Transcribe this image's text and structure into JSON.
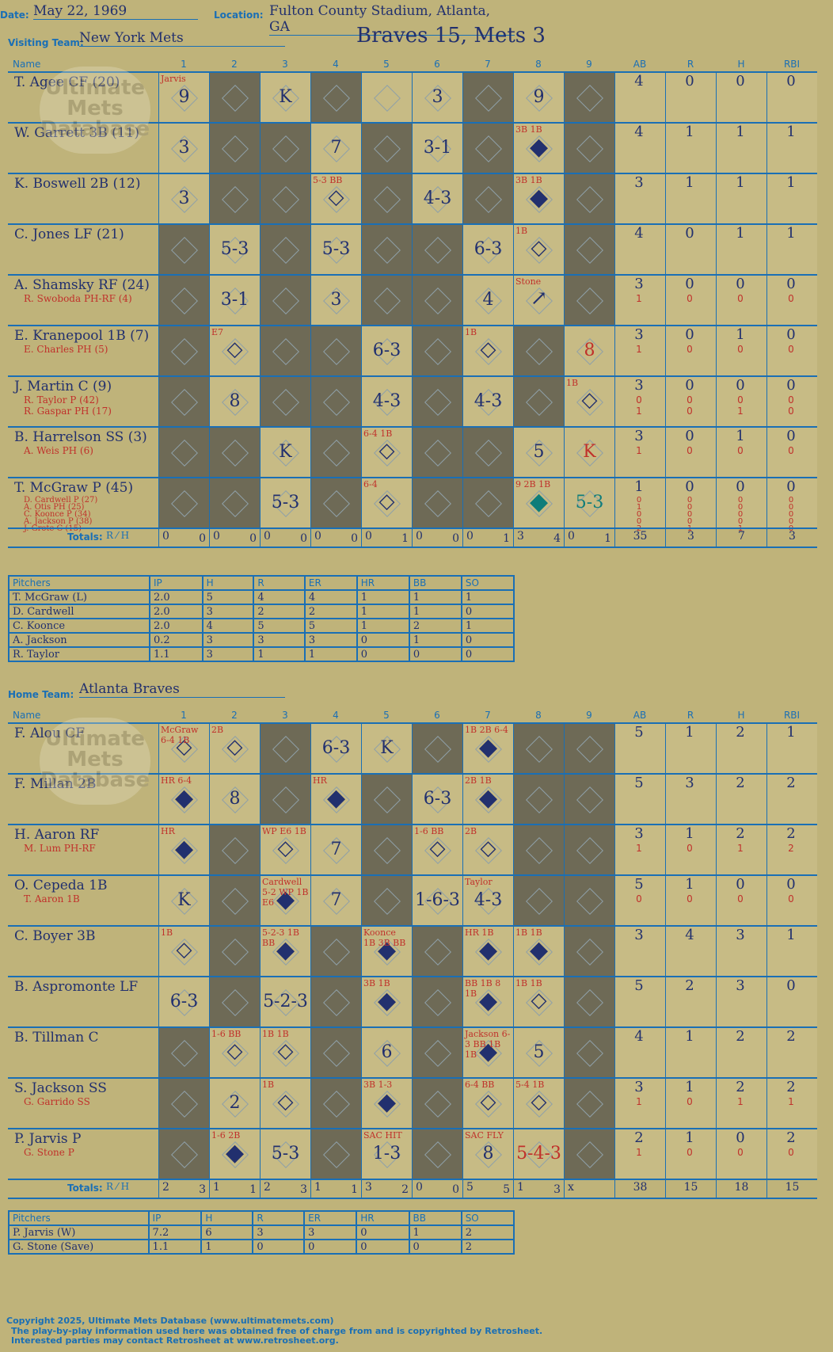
{
  "header": {
    "date_label": "Date:",
    "date": "May 22, 1969",
    "location_label": "Location:",
    "location": "Fulton County Stadium, Atlanta, GA",
    "score": "Braves 15, Mets 3"
  },
  "watermark": {
    "line1": "Ultimate",
    "line2": "Mets",
    "line3": "Database",
    "url": "ultimatemets.com"
  },
  "visitors": {
    "team_label": "Visiting Team:",
    "team": "New York Mets",
    "columns": [
      "Name",
      "1",
      "2",
      "3",
      "4",
      "5",
      "6",
      "7",
      "8",
      "9",
      "AB",
      "R",
      "H",
      "RBI"
    ],
    "players": [
      {
        "name": "T. Agee CF (20)",
        "subs": [],
        "ab": "4",
        "r": "0",
        "h": "0",
        "rbi": "0",
        "sub_stats": []
      },
      {
        "name": "W. Garrett 3B (11)",
        "subs": [],
        "ab": "4",
        "r": "1",
        "h": "1",
        "rbi": "1",
        "sub_stats": []
      },
      {
        "name": "K. Boswell 2B (12)",
        "subs": [],
        "ab": "3",
        "r": "1",
        "h": "1",
        "rbi": "1",
        "sub_stats": []
      },
      {
        "name": "C. Jones LF (21)",
        "subs": [],
        "ab": "4",
        "r": "0",
        "h": "1",
        "rbi": "1",
        "sub_stats": []
      },
      {
        "name": "A. Shamsky RF (24)",
        "subs": [
          "R. Swoboda PH-RF (4)"
        ],
        "ab": "3",
        "r": "0",
        "h": "0",
        "rbi": "0",
        "sub_stats": [
          [
            "1",
            "0",
            "0",
            "0"
          ]
        ]
      },
      {
        "name": "E. Kranepool 1B (7)",
        "subs": [
          "E. Charles PH (5)"
        ],
        "ab": "3",
        "r": "0",
        "h": "1",
        "rbi": "0",
        "sub_stats": [
          [
            "1",
            "0",
            "0",
            "0"
          ]
        ]
      },
      {
        "name": "J. Martin C (9)",
        "subs": [
          "R. Taylor P (42)",
          "R. Gaspar PH (17)"
        ],
        "ab": "3",
        "r": "0",
        "h": "0",
        "rbi": "0",
        "sub_stats": [
          [
            "0",
            "0",
            "0",
            "0"
          ],
          [
            "1",
            "0",
            "1",
            "0"
          ]
        ]
      },
      {
        "name": "B. Harrelson SS (3)",
        "subs": [
          "A. Weis PH (6)"
        ],
        "ab": "3",
        "r": "0",
        "h": "1",
        "rbi": "0",
        "sub_stats": [
          [
            "1",
            "0",
            "0",
            "0"
          ]
        ]
      },
      {
        "name": "T. McGraw P (45)",
        "subs": [
          "D. Cardwell P (27)",
          "A. Otis PH (25)",
          "C. Koonce P (34)",
          "A. Jackson P (38)",
          "J. Grote C (15)"
        ],
        "ab": "1",
        "r": "0",
        "h": "0",
        "rbi": "0",
        "sub_stats": [
          [
            "0",
            "0",
            "0",
            "0"
          ],
          [
            "1",
            "0",
            "0",
            "0"
          ],
          [
            "0",
            "0",
            "0",
            "0"
          ],
          [
            "0",
            "0",
            "0",
            "0"
          ],
          [
            "2",
            "1",
            "1",
            "0"
          ]
        ]
      }
    ],
    "cells": [
      [
        "9",
        "",
        "K",
        "",
        "",
        "3",
        "",
        "9",
        ""
      ],
      [
        "3",
        "",
        "",
        "7",
        "",
        "3-1",
        "",
        "◆",
        ""
      ],
      [
        "3",
        "",
        "",
        "◇",
        "",
        "4-3",
        "",
        "◆",
        ""
      ],
      [
        "",
        "5-3",
        "",
        "5-3",
        "",
        "",
        "6-3",
        "◇",
        ""
      ],
      [
        "",
        "3-1",
        "",
        "3",
        "",
        "",
        "4",
        "↗",
        ""
      ],
      [
        "",
        "◇",
        "",
        "",
        "6-3",
        "",
        "◇",
        "",
        "8"
      ],
      [
        "",
        "8",
        "",
        "",
        "4-3",
        "",
        "4-3",
        "",
        "◇"
      ],
      [
        "",
        "",
        "K",
        "",
        "◇",
        "",
        "",
        "5",
        "K"
      ],
      [
        "",
        "",
        "5-3",
        "",
        "◇",
        "",
        "",
        "◆",
        "5-3"
      ]
    ],
    "cell_notes": [
      [
        "Jarvis",
        "",
        "",
        "",
        "",
        "",
        "",
        "",
        ""
      ],
      [
        "",
        "",
        "",
        "",
        "",
        "",
        "",
        "3B 1B",
        ""
      ],
      [
        "",
        "",
        "",
        "5-3 BB",
        "",
        "",
        "",
        "3B 1B",
        ""
      ],
      [
        "",
        "",
        "",
        "",
        "",
        "",
        "",
        "1B",
        ""
      ],
      [
        "",
        "",
        "",
        "",
        "",
        "",
        "",
        "Stone",
        ""
      ],
      [
        "",
        "E7",
        "",
        "",
        "",
        "",
        "1B",
        "",
        ""
      ],
      [
        "",
        "",
        "",
        "",
        "",
        "",
        "",
        "",
        "1B"
      ],
      [
        "",
        "",
        "",
        "",
        "6-4 1B",
        "",
        "",
        "",
        ""
      ],
      [
        "",
        "",
        "",
        "",
        "6-4",
        "",
        "",
        "9 2B 1B",
        ""
      ]
    ],
    "totals_label": "Totals:",
    "rh_label_r": "R",
    "rh_label_h": "H",
    "inning_totals": [
      [
        "0",
        "0"
      ],
      [
        "0",
        "0"
      ],
      [
        "0",
        "0"
      ],
      [
        "0",
        "0"
      ],
      [
        "0",
        "1"
      ],
      [
        "0",
        "0"
      ],
      [
        "0",
        "1"
      ],
      [
        "3",
        "4"
      ],
      [
        "0",
        "1"
      ]
    ],
    "totals": {
      "ab": "35",
      "r": "3",
      "h": "7",
      "rbi": "3"
    }
  },
  "visitor_pitchers": {
    "columns": [
      "Pitchers",
      "IP",
      "H",
      "R",
      "ER",
      "HR",
      "BB",
      "SO"
    ],
    "rows": [
      [
        "T. McGraw (L)",
        "2.0",
        "5",
        "4",
        "4",
        "1",
        "1",
        "1"
      ],
      [
        "D. Cardwell",
        "2.0",
        "3",
        "2",
        "2",
        "1",
        "1",
        "0"
      ],
      [
        "C. Koonce",
        "2.0",
        "4",
        "5",
        "5",
        "1",
        "2",
        "1"
      ],
      [
        "A. Jackson",
        "0.2",
        "3",
        "3",
        "3",
        "0",
        "1",
        "0"
      ],
      [
        "R. Taylor",
        "1.1",
        "3",
        "1",
        "1",
        "0",
        "0",
        "0"
      ]
    ]
  },
  "home": {
    "team_label": "Home Team:",
    "team": "Atlanta Braves",
    "players": [
      {
        "name": "F. Alou CF",
        "subs": [],
        "ab": "5",
        "r": "1",
        "h": "2",
        "rbi": "1",
        "sub_stats": []
      },
      {
        "name": "F. Millan 2B",
        "subs": [],
        "ab": "5",
        "r": "3",
        "h": "2",
        "rbi": "2",
        "sub_stats": []
      },
      {
        "name": "H. Aaron RF",
        "subs": [
          "M. Lum PH-RF"
        ],
        "ab": "3",
        "r": "1",
        "h": "2",
        "rbi": "2",
        "sub_stats": [
          [
            "1",
            "0",
            "1",
            "2"
          ]
        ]
      },
      {
        "name": "O. Cepeda 1B",
        "subs": [
          "T. Aaron 1B"
        ],
        "ab": "5",
        "r": "1",
        "h": "0",
        "rbi": "0",
        "sub_stats": [
          [
            "0",
            "0",
            "0",
            "0"
          ]
        ]
      },
      {
        "name": "C. Boyer 3B",
        "subs": [],
        "ab": "3",
        "r": "4",
        "h": "3",
        "rbi": "1",
        "sub_stats": []
      },
      {
        "name": "B. Aspromonte LF",
        "subs": [],
        "ab": "5",
        "r": "2",
        "h": "3",
        "rbi": "0",
        "sub_stats": []
      },
      {
        "name": "B. Tillman C",
        "subs": [],
        "ab": "4",
        "r": "1",
        "h": "2",
        "rbi": "2",
        "sub_stats": []
      },
      {
        "name": "S. Jackson SS",
        "subs": [
          "G. Garrido SS"
        ],
        "ab": "3",
        "r": "1",
        "h": "2",
        "rbi": "2",
        "sub_stats": [
          [
            "1",
            "0",
            "1",
            "1"
          ]
        ]
      },
      {
        "name": "P. Jarvis P",
        "subs": [
          "G. Stone P"
        ],
        "ab": "2",
        "r": "1",
        "h": "0",
        "rbi": "2",
        "sub_stats": [
          [
            "1",
            "0",
            "0",
            "0"
          ]
        ]
      }
    ],
    "cells": [
      [
        "◇",
        "◇",
        "",
        "6-3",
        "K",
        "",
        "◆",
        "",
        ""
      ],
      [
        "◆",
        "8",
        "",
        "◆",
        "",
        "6-3",
        "◆",
        "",
        ""
      ],
      [
        "◆",
        "",
        "◇",
        "7",
        "",
        "◇",
        "◇",
        "",
        ""
      ],
      [
        "K",
        "",
        "◆",
        "7",
        "",
        "1-6-3",
        "4-3",
        "",
        ""
      ],
      [
        "◇",
        "",
        "◆",
        "",
        "◆",
        "",
        "◆",
        "◆",
        ""
      ],
      [
        "6-3",
        "",
        "5-2-3",
        "",
        "◆",
        "",
        "◆",
        "◇",
        ""
      ],
      [
        "",
        "◇",
        "◇",
        "",
        "6",
        "",
        "◆",
        "5",
        ""
      ],
      [
        "",
        "2",
        "◇",
        "",
        "◆",
        "",
        "◇",
        "◇",
        ""
      ],
      [
        "",
        "◆",
        "5-3",
        "",
        "1-3",
        "",
        "8",
        "5-4-3",
        ""
      ]
    ],
    "cell_notes": [
      [
        "McGraw 6-4 1B",
        "2B",
        "",
        "",
        "",
        "",
        "1B 2B 6-4",
        "",
        ""
      ],
      [
        "HR 6-4",
        "",
        "",
        "HR",
        "",
        "",
        "2B 1B",
        "",
        ""
      ],
      [
        "HR",
        "",
        "WP E6 1B",
        "",
        "",
        "1-6 BB",
        "2B",
        "",
        ""
      ],
      [
        "",
        "",
        "Cardwell 5-2 WP 1B E6",
        "",
        "",
        "",
        "Taylor",
        "",
        ""
      ],
      [
        "1B",
        "",
        "5-2-3 1B BB",
        "",
        "Koonce 1B 3B BB",
        "",
        "HR 1B",
        "1B 1B",
        ""
      ],
      [
        "",
        "",
        "",
        "",
        "3B 1B",
        "",
        "BB 1B 8 1B",
        "1B 1B",
        ""
      ],
      [
        "",
        "1-6 BB",
        "1B 1B",
        "",
        "",
        "",
        "Jackson 6-3 BB 1B 1B",
        "",
        ""
      ],
      [
        "",
        "",
        "1B",
        "",
        "3B 1-3",
        "",
        "6-4 BB",
        "5-4 1B",
        ""
      ],
      [
        "",
        "1-6 2B",
        "",
        "",
        "SAC HIT",
        "",
        "SAC FLY",
        "",
        ""
      ]
    ],
    "totals_label": "Totals:",
    "rh_label_r": "R",
    "rh_label_h": "H",
    "inning_totals": [
      [
        "2",
        "3"
      ],
      [
        "1",
        "1"
      ],
      [
        "2",
        "3"
      ],
      [
        "1",
        "1"
      ],
      [
        "3",
        "2"
      ],
      [
        "0",
        "0"
      ],
      [
        "5",
        "5"
      ],
      [
        "1",
        "3"
      ],
      [
        "x",
        ""
      ]
    ],
    "totals": {
      "ab": "38",
      "r": "15",
      "h": "18",
      "rbi": "15"
    }
  },
  "home_pitchers": {
    "columns": [
      "Pitchers",
      "IP",
      "H",
      "R",
      "ER",
      "HR",
      "BB",
      "SO"
    ],
    "rows": [
      [
        "P. Jarvis (W)",
        "7.2",
        "6",
        "3",
        "3",
        "0",
        "1",
        "2"
      ],
      [
        "G. Stone (Save)",
        "1.1",
        "1",
        "0",
        "0",
        "0",
        "0",
        "2"
      ]
    ]
  },
  "footer": {
    "line1": "Copyright 2025, Ultimate Mets Database (www.ultimatemets.com)",
    "line2": "The play-by-play information used here was obtained free of charge from and is copyrighted by Retrosheet.",
    "line3": "Interested parties may contact Retrosheet at www.retrosheet.org."
  }
}
